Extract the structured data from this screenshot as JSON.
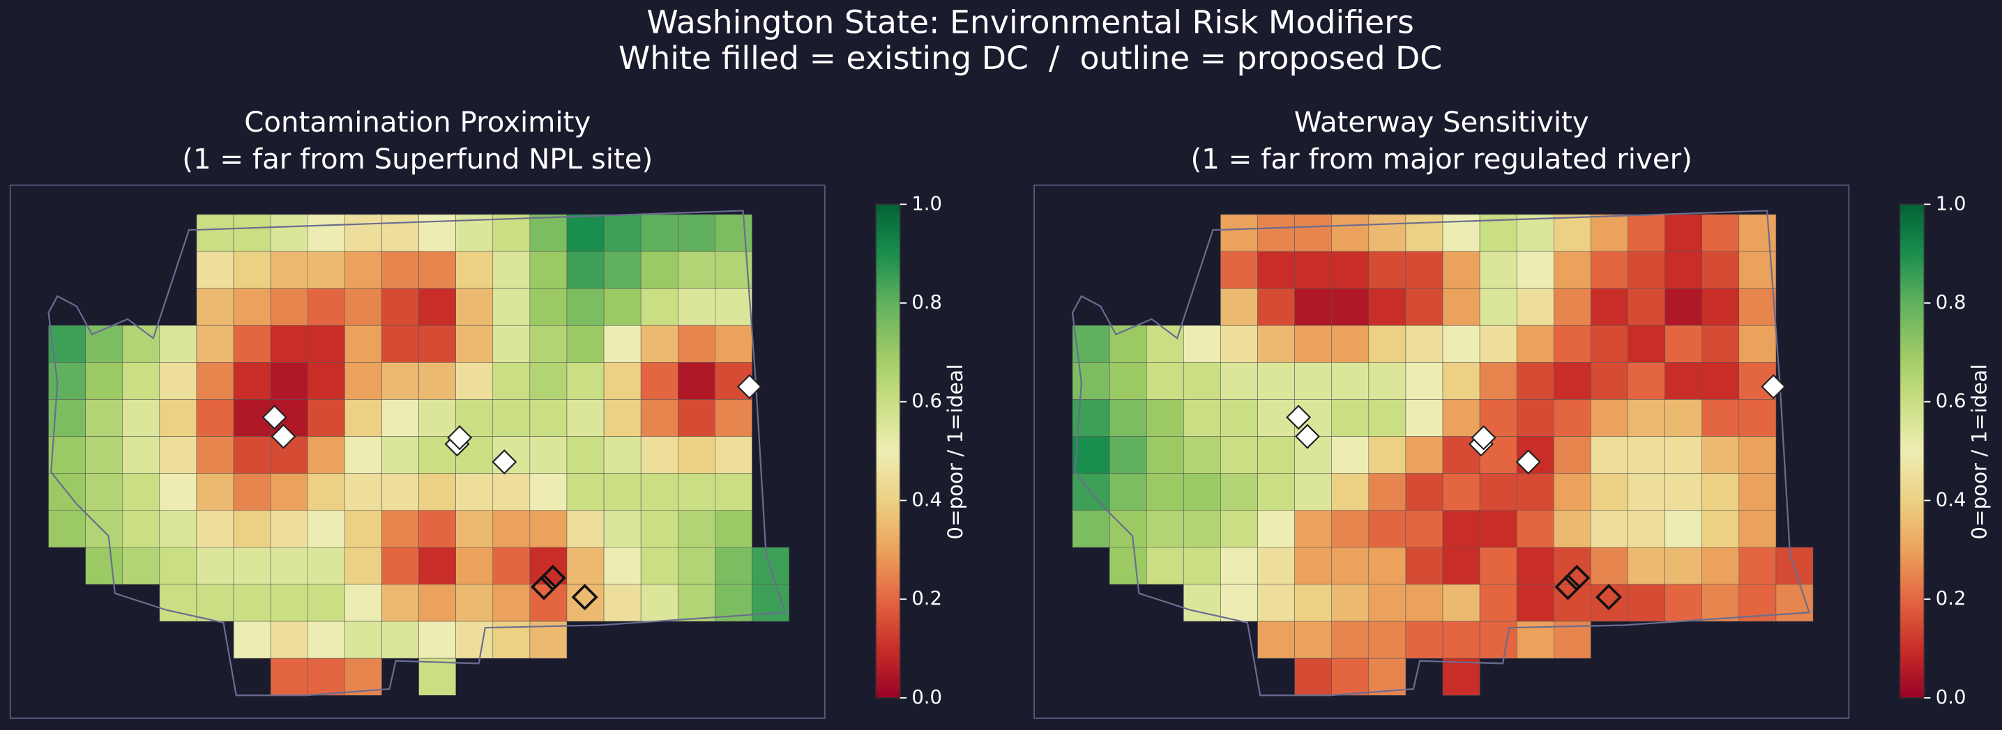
{
  "title": "Washington State: Environmental Risk Modifiers",
  "subtitle": "White filled = existing DC  /  outline = proposed DC",
  "chart_data": [
    {
      "type": "heatmap",
      "title": "Contamination Proximity",
      "subtitle": "(1 = far from Superfund NPL site)",
      "colormap": "RdYlGn",
      "rows": [
        [
          null,
          null,
          null,
          null,
          0.6,
          0.6,
          0.55,
          0.5,
          0.45,
          0.45,
          0.5,
          0.55,
          0.6,
          0.75,
          0.9,
          0.85,
          0.8,
          0.8,
          0.75,
          null
        ],
        [
          null,
          null,
          null,
          null,
          0.45,
          0.4,
          0.35,
          0.35,
          0.3,
          0.25,
          0.25,
          0.4,
          0.55,
          0.7,
          0.85,
          0.8,
          0.7,
          0.65,
          0.65,
          null
        ],
        [
          null,
          null,
          null,
          null,
          0.35,
          0.3,
          0.25,
          0.2,
          0.25,
          0.15,
          0.1,
          0.35,
          0.55,
          0.7,
          0.75,
          0.7,
          0.6,
          0.55,
          0.55,
          null
        ],
        [
          0.85,
          0.75,
          0.65,
          0.55,
          0.35,
          0.2,
          0.1,
          0.1,
          0.3,
          0.15,
          0.15,
          0.35,
          0.55,
          0.65,
          0.7,
          0.5,
          0.35,
          0.25,
          0.3,
          null
        ],
        [
          0.8,
          0.7,
          0.6,
          0.45,
          0.25,
          0.1,
          0.05,
          0.1,
          0.3,
          0.35,
          0.35,
          0.45,
          0.6,
          0.65,
          0.6,
          0.4,
          0.2,
          0.05,
          0.15,
          null
        ],
        [
          0.75,
          0.65,
          0.55,
          0.4,
          0.2,
          0.05,
          0.05,
          0.15,
          0.4,
          0.5,
          0.55,
          0.6,
          0.6,
          0.6,
          0.55,
          0.4,
          0.25,
          0.15,
          0.25,
          null
        ],
        [
          0.7,
          0.65,
          0.55,
          0.45,
          0.25,
          0.15,
          0.15,
          0.3,
          0.5,
          0.55,
          0.6,
          0.6,
          0.55,
          0.55,
          0.6,
          0.55,
          0.45,
          0.4,
          0.45,
          null
        ],
        [
          0.7,
          0.65,
          0.6,
          0.5,
          0.35,
          0.25,
          0.3,
          0.4,
          0.45,
          0.45,
          0.4,
          0.45,
          0.45,
          0.5,
          0.6,
          0.6,
          0.6,
          0.6,
          0.6,
          null
        ],
        [
          0.7,
          0.65,
          0.6,
          0.55,
          0.45,
          0.4,
          0.45,
          0.5,
          0.4,
          0.25,
          0.2,
          0.35,
          0.3,
          0.3,
          0.45,
          0.55,
          0.6,
          0.65,
          0.7,
          null
        ],
        [
          null,
          0.7,
          0.65,
          0.6,
          0.55,
          0.55,
          0.55,
          0.55,
          0.4,
          0.2,
          0.1,
          0.3,
          0.2,
          0.1,
          0.35,
          0.5,
          0.6,
          0.65,
          0.75,
          0.85
        ],
        [
          null,
          null,
          null,
          0.6,
          0.6,
          0.6,
          0.6,
          0.6,
          0.5,
          0.35,
          0.3,
          0.35,
          0.3,
          0.2,
          0.35,
          0.45,
          0.55,
          0.65,
          0.75,
          0.85
        ],
        [
          null,
          null,
          null,
          null,
          null,
          0.5,
          0.45,
          0.5,
          0.55,
          0.55,
          0.5,
          0.45,
          0.4,
          0.35,
          null,
          null,
          null,
          null,
          null,
          null
        ],
        [
          null,
          null,
          null,
          null,
          null,
          null,
          0.2,
          0.2,
          0.25,
          null,
          0.6,
          null,
          null,
          null,
          null,
          null,
          null,
          null,
          null,
          null
        ]
      ],
      "colorbar": {
        "label": "0=poor / 1=ideal",
        "ylim": [
          0,
          1
        ],
        "yticks": [
          {
            "value": 0,
            "label": "0.0"
          },
          {
            "value": 0.2,
            "label": "0.2"
          },
          {
            "value": 0.4,
            "label": "0.4"
          },
          {
            "value": 0.6,
            "label": "0.6"
          },
          {
            "value": 0.8,
            "label": "0.8"
          },
          {
            "value": 1,
            "label": "1.0"
          }
        ]
      }
    },
    {
      "type": "heatmap",
      "title": "Waterway Sensitivity",
      "subtitle": "(1 = far from major regulated river)",
      "colormap": "RdYlGn",
      "rows": [
        [
          null,
          null,
          null,
          null,
          0.3,
          0.25,
          0.25,
          0.3,
          0.35,
          0.4,
          0.5,
          0.6,
          0.55,
          0.4,
          0.3,
          0.2,
          0.1,
          0.2,
          0.3,
          null
        ],
        [
          null,
          null,
          null,
          null,
          0.2,
          0.1,
          0.1,
          0.1,
          0.15,
          0.15,
          0.3,
          0.55,
          0.5,
          0.3,
          0.2,
          0.15,
          0.1,
          0.15,
          0.3,
          null
        ],
        [
          null,
          null,
          null,
          null,
          0.35,
          0.15,
          0.05,
          0.05,
          0.1,
          0.15,
          0.3,
          0.55,
          0.45,
          0.25,
          0.1,
          0.15,
          0.05,
          0.1,
          0.25,
          null
        ],
        [
          0.8,
          0.7,
          0.6,
          0.5,
          0.45,
          0.35,
          0.3,
          0.3,
          0.4,
          0.45,
          0.5,
          0.45,
          0.3,
          0.2,
          0.15,
          0.1,
          0.2,
          0.15,
          0.3,
          null
        ],
        [
          0.75,
          0.7,
          0.6,
          0.6,
          0.55,
          0.55,
          0.55,
          0.55,
          0.55,
          0.5,
          0.4,
          0.25,
          0.15,
          0.1,
          0.15,
          0.2,
          0.1,
          0.1,
          0.2,
          null
        ],
        [
          0.85,
          0.75,
          0.7,
          0.6,
          0.6,
          0.55,
          0.55,
          0.6,
          0.6,
          0.5,
          0.3,
          0.2,
          0.15,
          0.2,
          0.3,
          0.35,
          0.35,
          0.2,
          0.2,
          null
        ],
        [
          0.9,
          0.8,
          0.7,
          0.65,
          0.6,
          0.6,
          0.55,
          0.5,
          0.4,
          0.3,
          0.15,
          0.2,
          0.1,
          0.25,
          0.45,
          0.45,
          0.45,
          0.35,
          0.3,
          null
        ],
        [
          0.85,
          0.75,
          0.7,
          0.7,
          0.65,
          0.6,
          0.55,
          0.4,
          0.25,
          0.15,
          0.2,
          0.15,
          0.15,
          0.3,
          0.4,
          0.45,
          0.45,
          0.4,
          0.3,
          null
        ],
        [
          0.75,
          0.7,
          0.65,
          0.65,
          0.6,
          0.5,
          0.3,
          0.25,
          0.2,
          0.2,
          0.1,
          0.1,
          0.2,
          0.35,
          0.45,
          0.45,
          0.5,
          0.4,
          0.3,
          null
        ],
        [
          null,
          0.7,
          0.6,
          0.6,
          0.5,
          0.45,
          0.3,
          0.3,
          0.3,
          0.15,
          0.1,
          0.2,
          0.1,
          0.15,
          0.25,
          0.35,
          0.35,
          0.3,
          0.2,
          0.15
        ],
        [
          null,
          null,
          null,
          0.55,
          0.5,
          0.45,
          0.4,
          0.35,
          0.3,
          0.3,
          0.35,
          0.2,
          0.1,
          0.15,
          0.15,
          0.15,
          0.2,
          0.25,
          0.2,
          0.25
        ],
        [
          null,
          null,
          null,
          null,
          null,
          0.3,
          0.3,
          0.25,
          0.25,
          0.2,
          0.2,
          0.2,
          0.3,
          0.25,
          null,
          null,
          null,
          null,
          null,
          null
        ],
        [
          null,
          null,
          null,
          null,
          null,
          null,
          0.15,
          0.2,
          0.25,
          null,
          0.1,
          null,
          null,
          null,
          null,
          null,
          null,
          null,
          null,
          null
        ]
      ],
      "colorbar": {
        "label": "0=poor / 1=ideal",
        "ylim": [
          0,
          1
        ],
        "yticks": [
          {
            "value": 0,
            "label": "0.0"
          },
          {
            "value": 0.2,
            "label": "0.2"
          },
          {
            "value": 0.4,
            "label": "0.4"
          },
          {
            "value": 0.6,
            "label": "0.6"
          },
          {
            "value": 0.8,
            "label": "0.8"
          },
          {
            "value": 1,
            "label": "1.0"
          }
        ]
      }
    }
  ]
}
